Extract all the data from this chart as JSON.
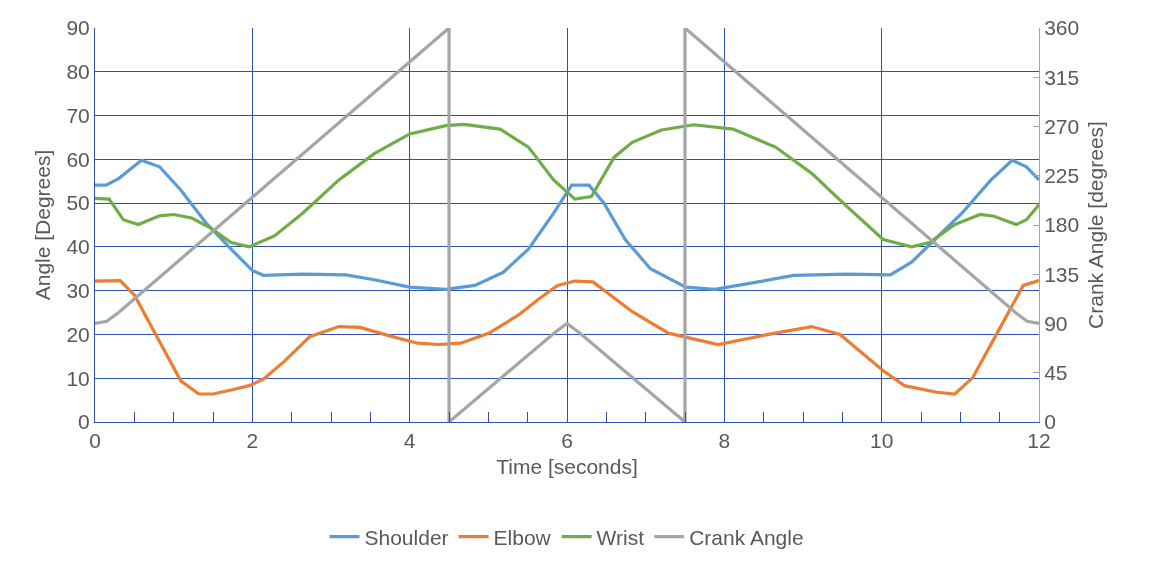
{
  "chart_data": {
    "type": "line",
    "xlabel": "Time [seconds]",
    "ylabel": "Angle [Degrees]",
    "y2label": "Crank Angle [degrees]",
    "xlim": [
      0,
      12
    ],
    "xticks": [
      0,
      {
        "value": 0.5,
        "label": null
      },
      {
        "value": 1,
        "label": null
      },
      {
        "value": 1.5,
        "label": null
      },
      2,
      {
        "value": 2.5,
        "label": null
      },
      {
        "value": 3,
        "label": null
      },
      {
        "value": 3.5,
        "label": null
      },
      4,
      {
        "value": 4.5,
        "label": null
      },
      {
        "value": 5,
        "label": null
      },
      {
        "value": 5.5,
        "label": null
      },
      6,
      {
        "value": 6.5,
        "label": null
      },
      {
        "value": 7,
        "label": null
      },
      {
        "value": 7.5,
        "label": null
      },
      8,
      {
        "value": 8.5,
        "label": null
      },
      {
        "value": 9,
        "label": null
      },
      {
        "value": 9.5,
        "label": null
      },
      10,
      {
        "value": 10.5,
        "label": null
      },
      {
        "value": 11,
        "label": null
      },
      {
        "value": 11.5,
        "label": null
      },
      12
    ],
    "ylim": [
      0,
      90
    ],
    "yticks": [
      0,
      10,
      20,
      30,
      40,
      50,
      60,
      70,
      80,
      90
    ],
    "y2lim": [
      0,
      360
    ],
    "y2ticks": [
      0,
      45,
      90,
      135,
      180,
      225,
      270,
      315,
      360
    ],
    "grid": true,
    "legend": "bottom",
    "marker": "none",
    "line_style": "solid",
    "series": [
      {
        "name": "Shoulder",
        "color": "#5b9bd5",
        "x": [
          0,
          0.14,
          0.3,
          0.59,
          0.82,
          1.09,
          1.41,
          1.73,
          2.0,
          2.14,
          2.64,
          3.19,
          3.55,
          4.0,
          4.46,
          4.83,
          5.19,
          5.51,
          5.83,
          6.06,
          6.28,
          6.47,
          6.74,
          7.06,
          7.51,
          7.88,
          8.43,
          8.88,
          9.56,
          10.11,
          10.38,
          10.66,
          11.02,
          11.39,
          11.66,
          11.84,
          12
        ],
        "values": [
          54.1,
          54.1,
          55.6,
          59.8,
          58.3,
          53,
          45.5,
          39.5,
          34.6,
          33.5,
          33.8,
          33.6,
          32.5,
          30.8,
          30.3,
          31.2,
          34.2,
          39.5,
          47.7,
          54.1,
          54.1,
          50,
          41.7,
          35,
          30.8,
          30.3,
          32,
          33.5,
          33.8,
          33.6,
          36.5,
          41.4,
          47.7,
          55.3,
          59.8,
          58.3,
          55.3
        ]
      },
      {
        "name": "Elbow",
        "color": "#ed7d31",
        "x": [
          0,
          0.32,
          0.5,
          0.82,
          1.09,
          1.32,
          1.5,
          1.73,
          1.96,
          2.14,
          2.41,
          2.73,
          3.1,
          3.37,
          3.78,
          4.1,
          4.37,
          4.65,
          5.01,
          5.38,
          5.65,
          5.88,
          6.1,
          6.33,
          6.83,
          7.29,
          7.92,
          8.56,
          9.11,
          9.47,
          10.02,
          10.29,
          10.7,
          10.93,
          11.16,
          11.48,
          11.8,
          12
        ],
        "values": [
          32.2,
          32.3,
          29,
          18.4,
          9.4,
          6.4,
          6.4,
          7.3,
          8.3,
          9.8,
          13.9,
          19.5,
          21.8,
          21.6,
          19.5,
          18,
          17.7,
          18,
          20.3,
          24.4,
          28.2,
          31.2,
          32.2,
          32,
          25.2,
          20.3,
          17.7,
          20,
          21.8,
          20,
          11.7,
          8.3,
          6.8,
          6.4,
          10.2,
          20.7,
          31.2,
          32.3
        ]
      },
      {
        "name": "Wrist",
        "color": "#70ad47",
        "x": [
          0,
          0.18,
          0.36,
          0.55,
          0.82,
          1.0,
          1.23,
          1.46,
          1.73,
          1.96,
          2.28,
          2.64,
          3.1,
          3.55,
          4.0,
          4.46,
          4.69,
          5.15,
          5.51,
          5.83,
          6.1,
          6.31,
          6.6,
          6.83,
          7.2,
          7.61,
          8.11,
          8.65,
          9.11,
          9.56,
          10.02,
          10.38,
          10.61,
          10.93,
          11.25,
          11.43,
          11.71,
          11.84,
          12
        ],
        "values": [
          51.1,
          50.9,
          46.2,
          45.1,
          47.1,
          47.4,
          46.6,
          44.4,
          41,
          40,
          42.5,
          47.7,
          55.3,
          61.3,
          65.8,
          67.7,
          68,
          66.9,
          62.8,
          55.3,
          50.9,
          51.5,
          60.5,
          63.9,
          66.7,
          67.9,
          66.9,
          62.8,
          56.8,
          49.2,
          41.7,
          40,
          41,
          45.1,
          47.4,
          47,
          45.1,
          46.2,
          49.6
        ]
      },
      {
        "name": "Crank Angle",
        "color": "#a5a5a5",
        "axis": "y2",
        "x": [
          0,
          0.15,
          0.3,
          4.5,
          4.5,
          5.85,
          6,
          6.15,
          7.5,
          7.5,
          11.7,
          11.85,
          12
        ],
        "values": [
          90,
          92,
          100,
          360,
          0,
          82,
          90,
          82,
          0,
          360,
          100,
          92,
          90
        ]
      }
    ]
  }
}
